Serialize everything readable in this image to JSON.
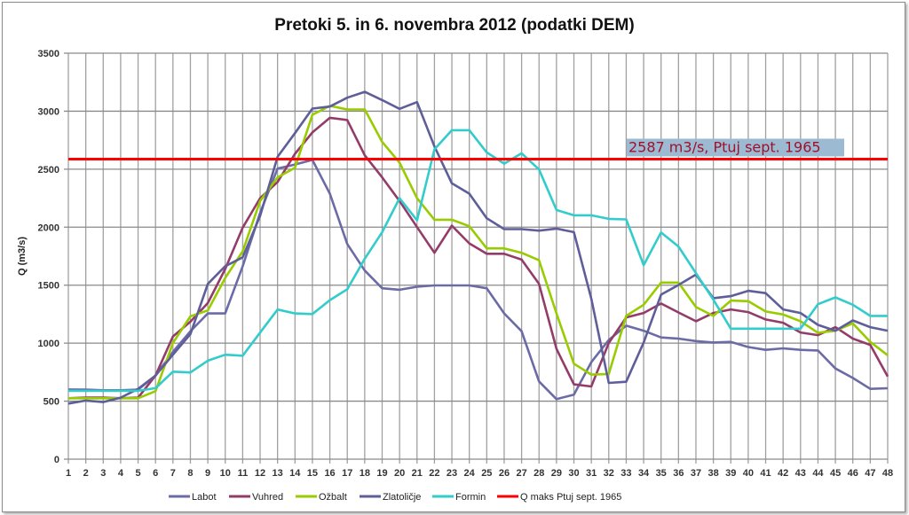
{
  "chart_data": {
    "type": "line",
    "title": "Pretoki 5. in 6. novembra 2012 (podatki DEM)",
    "xlabel": "",
    "ylabel": "Q (m3/s)",
    "x": [
      1,
      2,
      3,
      4,
      5,
      6,
      7,
      8,
      9,
      10,
      11,
      12,
      13,
      14,
      15,
      16,
      17,
      18,
      19,
      20,
      21,
      22,
      23,
      24,
      25,
      26,
      27,
      28,
      29,
      30,
      31,
      32,
      33,
      34,
      35,
      36,
      37,
      38,
      39,
      40,
      41,
      42,
      43,
      44,
      45,
      46,
      47,
      48
    ],
    "ylim": [
      0,
      3500
    ],
    "yticks": [
      0,
      500,
      1000,
      1500,
      2000,
      2500,
      3000,
      3500
    ],
    "grid": true,
    "legend": "bottom",
    "series": [
      {
        "name": "Labot",
        "color": "#6b6ba6",
        "values": [
          601,
          600,
          594,
          594,
          600,
          720,
          925,
          1103,
          1256,
          1256,
          1664,
          2123,
          2505,
          2540,
          2580,
          2289,
          1855,
          1626,
          1473,
          1460,
          1486,
          1498,
          1498,
          1498,
          1473,
          1256,
          1103,
          670,
          517,
          556,
          836,
          1027,
          1151,
          1107,
          1049,
          1039,
          1018,
          1006,
          1011,
          967,
          942,
          955,
          942,
          937,
          782,
          700,
          606,
          611
        ]
      },
      {
        "name": "Vuhred",
        "color": "#943c69",
        "values": [
          525,
          530,
          530,
          525,
          530,
          721,
          1058,
          1185,
          1346,
          1639,
          1996,
          2250,
          2390,
          2633,
          2817,
          2943,
          2924,
          2620,
          2429,
          2225,
          2001,
          1779,
          2013,
          1860,
          1771,
          1771,
          1720,
          1511,
          951,
          645,
          627,
          1002,
          1222,
          1260,
          1342,
          1265,
          1189,
          1260,
          1291,
          1268,
          1204,
          1176,
          1092,
          1069,
          1138,
          1039,
          985,
          713
        ]
      },
      {
        "name": "Ožbalt",
        "color": "#99cc00",
        "values": [
          525,
          525,
          525,
          525,
          525,
          586,
          1002,
          1231,
          1282,
          1562,
          1792,
          2225,
          2429,
          2513,
          2969,
          3046,
          3015,
          3015,
          2735,
          2556,
          2250,
          2064,
          2064,
          2008,
          1817,
          1817,
          1779,
          1715,
          1256,
          823,
          729,
          734,
          1235,
          1331,
          1522,
          1522,
          1311,
          1235,
          1367,
          1362,
          1273,
          1247,
          1189,
          1090,
          1107,
          1171,
          1011,
          896
        ]
      },
      {
        "name": "Zlatoličje",
        "color": "#5e5e9a",
        "values": [
          479,
          505,
          492,
          530,
          606,
          721,
          900,
          1078,
          1511,
          1664,
          1740,
          2097,
          2607,
          2811,
          3022,
          3040,
          3116,
          3167,
          3096,
          3020,
          3078,
          2696,
          2378,
          2289,
          2077,
          1983,
          1983,
          1970,
          1988,
          1957,
          1384,
          657,
          667,
          1006,
          1418,
          1502,
          1591,
          1388,
          1405,
          1451,
          1431,
          1291,
          1260,
          1158,
          1107,
          1196,
          1138,
          1107
        ]
      },
      {
        "name": "Formin",
        "color": "#33cccc",
        "values": [
          589,
          589,
          589,
          589,
          589,
          612,
          754,
          747,
          849,
          900,
          892,
          1091,
          1290,
          1256,
          1251,
          1371,
          1465,
          1728,
          1957,
          2250,
          2059,
          2671,
          2836,
          2836,
          2645,
          2548,
          2637,
          2497,
          2148,
          2102,
          2102,
          2072,
          2067,
          1673,
          1955,
          1833,
          1604,
          1375,
          1125,
          1125,
          1125,
          1125,
          1125,
          1336,
          1395,
          1331,
          1235,
          1235
        ]
      }
    ],
    "reference_line": {
      "name": "Q maks Ptuj sept. 1965",
      "value": 2587,
      "color": "#ff0000",
      "label": "2587 m3/s, Ptuj sept. 1965",
      "label_background": "#9dbad3",
      "label_color": "#a0102a"
    }
  }
}
